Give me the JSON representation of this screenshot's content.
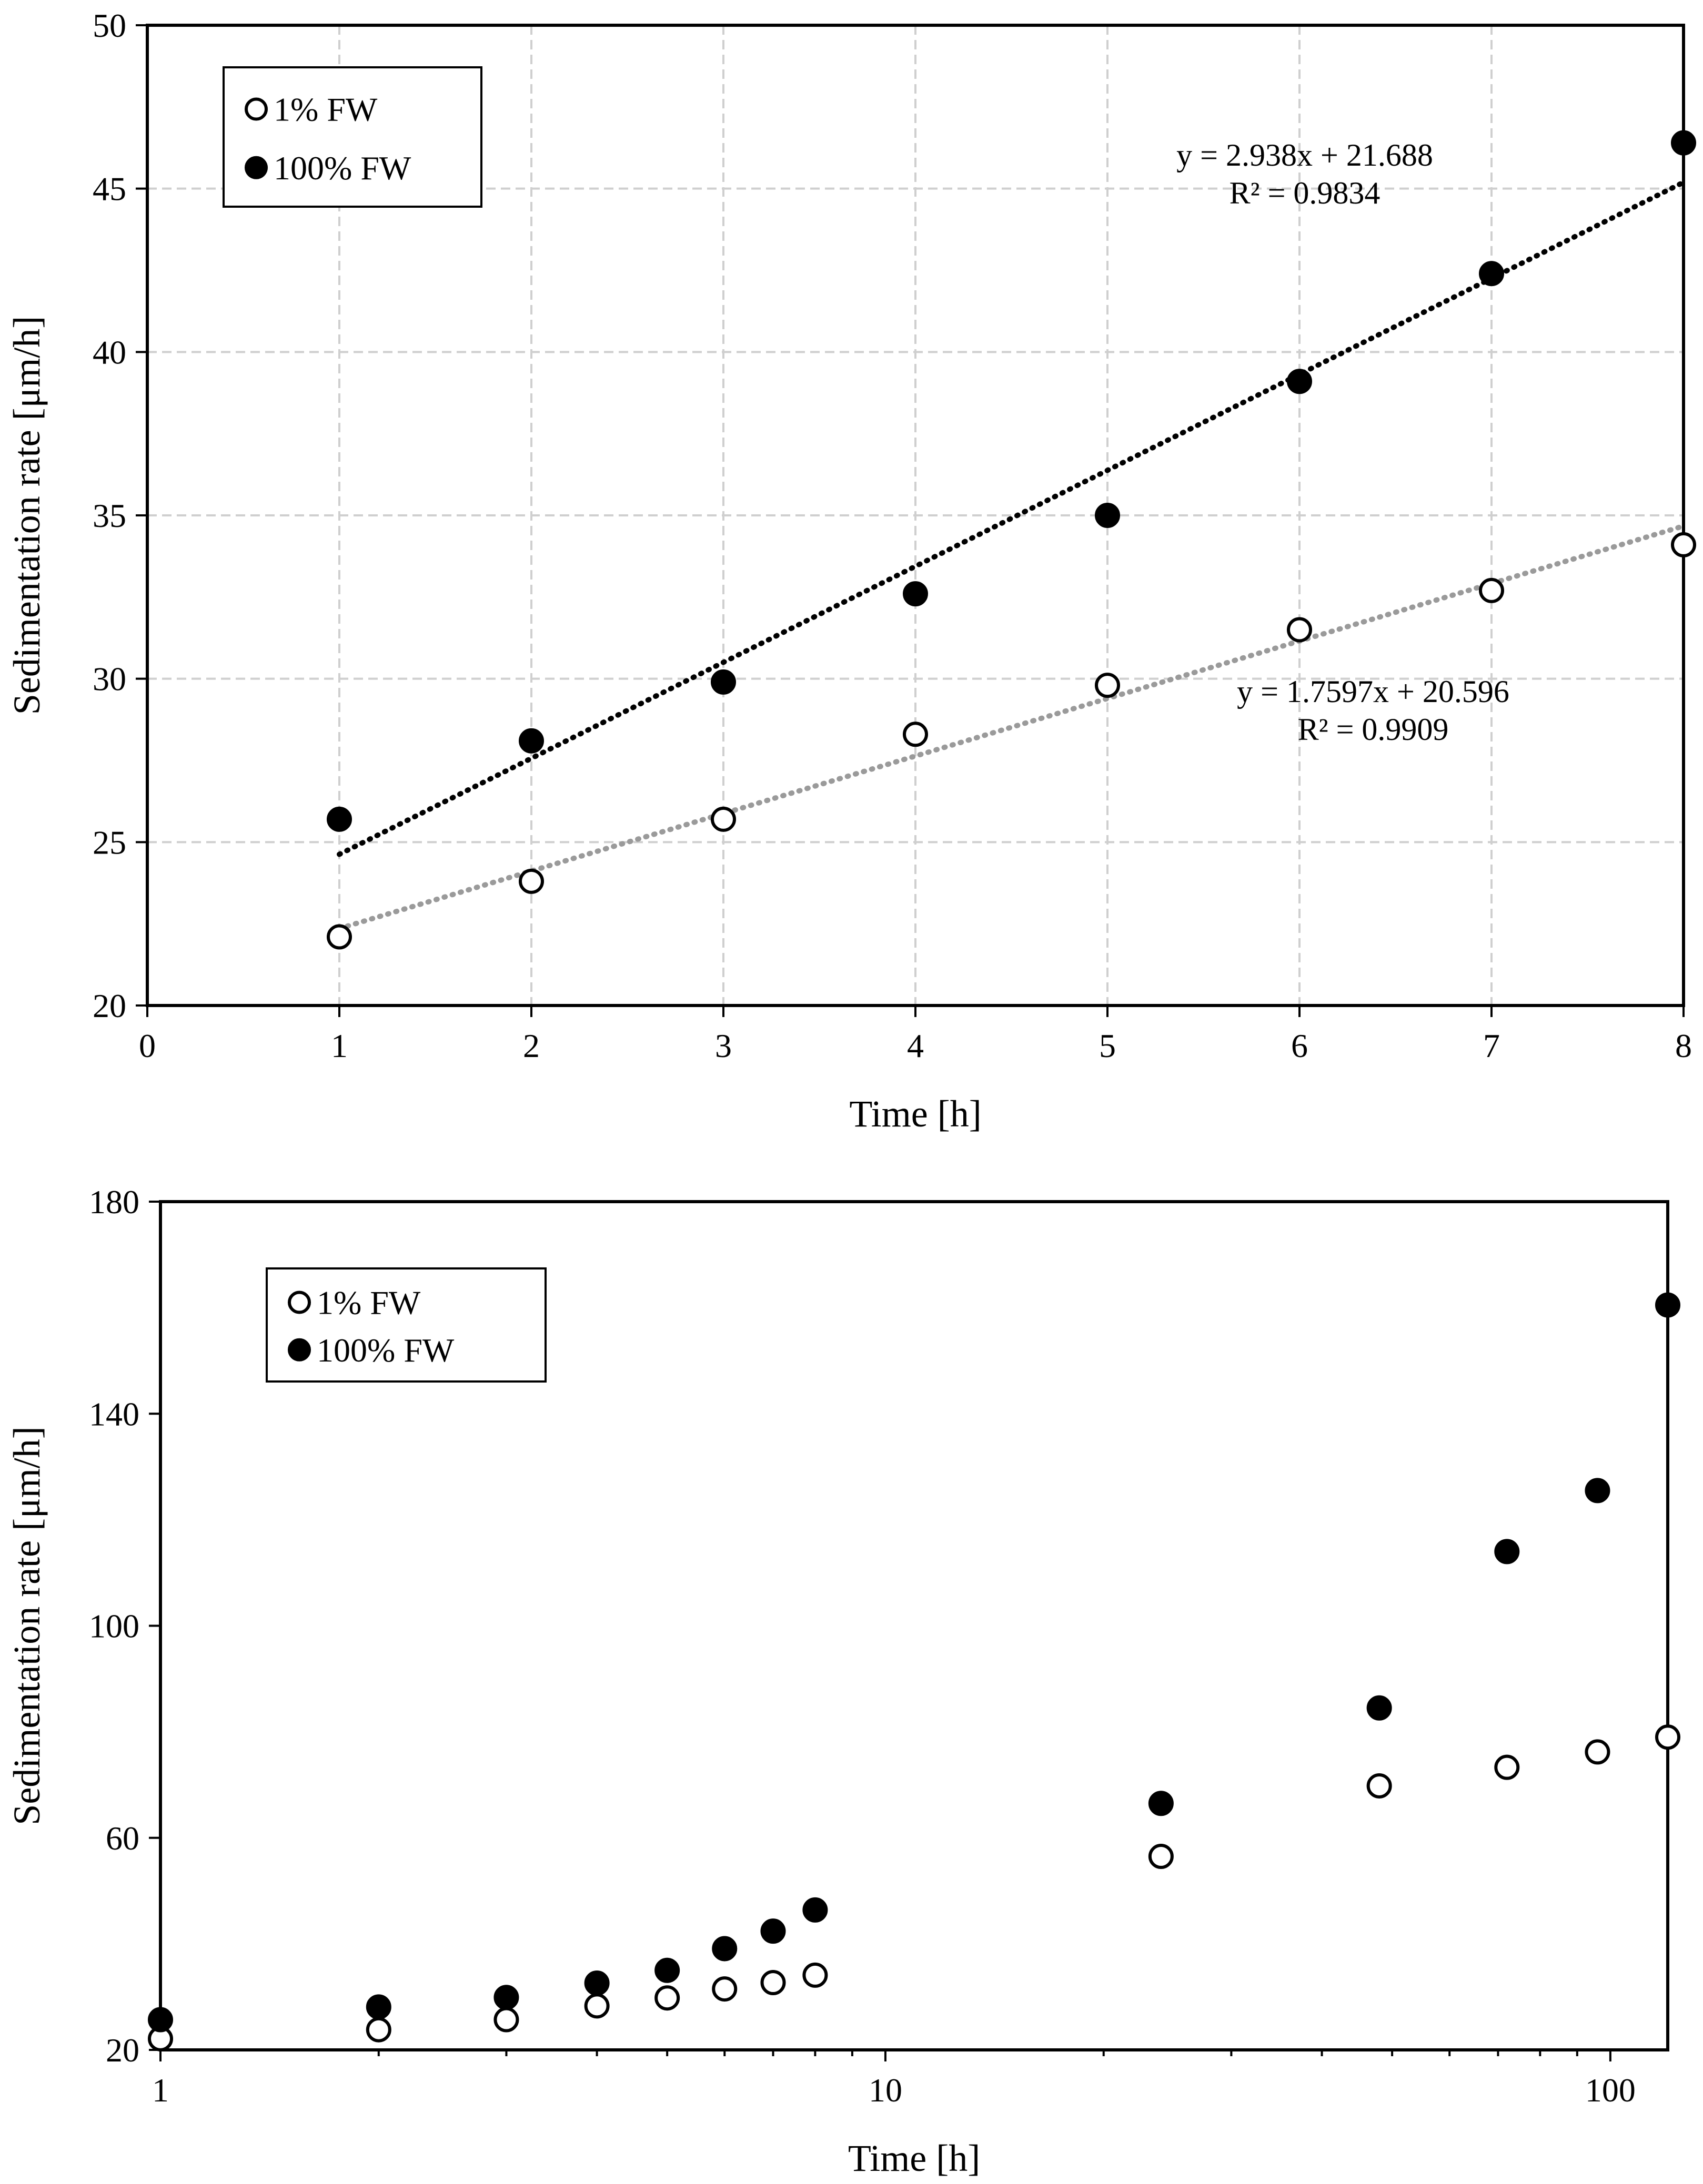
{
  "chart_data": [
    {
      "type": "scatter",
      "title": "",
      "xlabel": "Time [h]",
      "ylabel": "Sedimentation rate [μm/h]",
      "xscale": "linear",
      "xlim": [
        0,
        8
      ],
      "ylim": [
        20,
        50
      ],
      "xticks": [
        0,
        1,
        2,
        3,
        4,
        5,
        6,
        7,
        8
      ],
      "yticks": [
        20,
        25,
        30,
        35,
        40,
        45,
        50
      ],
      "grid": true,
      "legend_position": "top-left",
      "series": [
        {
          "name": "1% FW",
          "marker": "open-circle",
          "x": [
            1,
            2,
            3,
            4,
            5,
            6,
            7,
            8
          ],
          "y": [
            22.1,
            23.8,
            25.7,
            28.3,
            29.8,
            31.5,
            32.7,
            34.1
          ],
          "trendline": {
            "slope": 1.7597,
            "intercept": 20.596,
            "color": "#9a9a9a",
            "equation": "y = 1.7597x + 20.596",
            "r2": "R² = 0.9909"
          }
        },
        {
          "name": "100% FW",
          "marker": "filled-circle",
          "x": [
            1,
            2,
            3,
            4,
            5,
            6,
            7,
            8
          ],
          "y": [
            25.7,
            28.1,
            29.9,
            32.6,
            35.0,
            39.1,
            42.4,
            46.4
          ],
          "trendline": {
            "slope": 2.938,
            "intercept": 21.688,
            "color": "#000000",
            "equation": "y = 2.938x + 21.688",
            "r2": "R² = 0.9834"
          }
        }
      ]
    },
    {
      "type": "scatter",
      "title": "",
      "xlabel": "Time [h]",
      "ylabel": "Sedimentation rate [μm/h]",
      "xscale": "log",
      "xlim": [
        1,
        120
      ],
      "ylim": [
        20,
        180
      ],
      "xticks": [
        1,
        10,
        100
      ],
      "yticks": [
        20,
        60,
        100,
        140,
        180
      ],
      "grid": false,
      "legend_position": "top-left",
      "series": [
        {
          "name": "1% FW",
          "marker": "open-circle",
          "x": [
            1,
            2,
            3,
            4,
            5,
            6,
            7,
            8,
            24,
            48,
            72,
            96,
            120
          ],
          "y": [
            22.1,
            23.8,
            25.7,
            28.3,
            29.8,
            31.5,
            32.7,
            34.1,
            56.5,
            69.8,
            73.3,
            76.2,
            79.0
          ]
        },
        {
          "name": "100% FW",
          "marker": "filled-circle",
          "x": [
            1,
            2,
            3,
            4,
            5,
            6,
            7,
            8,
            24,
            48,
            72,
            96,
            120
          ],
          "y": [
            25.7,
            28.1,
            29.9,
            32.6,
            35.0,
            39.1,
            42.4,
            46.4,
            66.5,
            84.5,
            114.0,
            125.5,
            160.5
          ]
        }
      ]
    }
  ]
}
